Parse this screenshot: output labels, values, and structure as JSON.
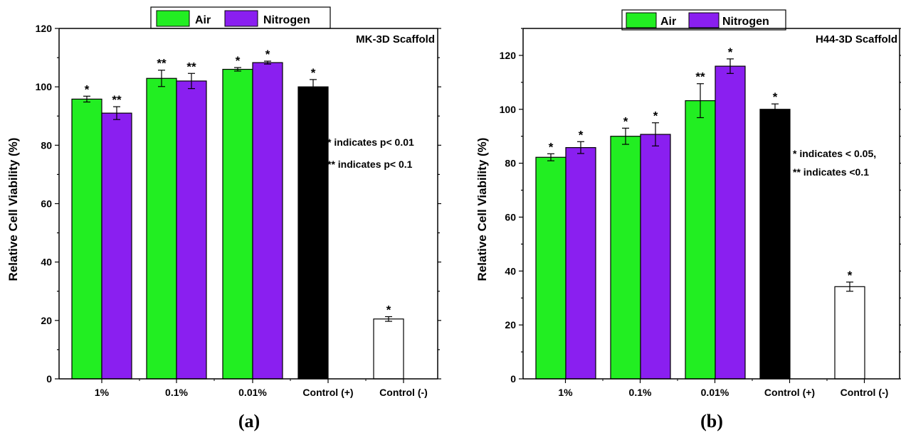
{
  "legend": {
    "air": "Air",
    "nitrogen": "Nitrogen"
  },
  "colors": {
    "air": "#22ee22",
    "nitrogen": "#8a1ff0",
    "control_pos": "#000000",
    "control_neg": "#ffffff"
  },
  "chart_data": [
    {
      "type": "bar",
      "panel_label": "(a)",
      "title": "MK-3D Scaffold",
      "xlabel": "",
      "ylabel": "Relative Cell Viability (%)",
      "ylim": [
        0,
        120
      ],
      "yticks": [
        0,
        20,
        40,
        60,
        80,
        100,
        120
      ],
      "categories": [
        "1%",
        "0.1%",
        "0.01%",
        "Control (+)",
        "Control (-)"
      ],
      "series": [
        {
          "name": "Air",
          "values": [
            95.8,
            102.9,
            106.0,
            null,
            null
          ],
          "errors": [
            1.0,
            2.8,
            0.6,
            null,
            null
          ],
          "sig": [
            "*",
            "**",
            "*",
            null,
            null
          ]
        },
        {
          "name": "Nitrogen",
          "values": [
            91.0,
            102.0,
            108.3,
            null,
            null
          ],
          "errors": [
            2.2,
            2.6,
            0.5,
            null,
            null
          ],
          "sig": [
            "**",
            "**",
            "*",
            null,
            null
          ]
        },
        {
          "name": "Control (+)",
          "values": [
            null,
            null,
            null,
            100.0,
            null
          ],
          "errors": [
            null,
            null,
            null,
            2.5,
            null
          ],
          "sig": [
            null,
            null,
            null,
            "*",
            null
          ]
        },
        {
          "name": "Control (-)",
          "values": [
            null,
            null,
            null,
            null,
            20.5
          ],
          "errors": [
            null,
            null,
            null,
            null,
            0.8
          ],
          "sig": [
            null,
            null,
            null,
            null,
            "*"
          ]
        }
      ],
      "annotations": [
        "* indicates p< 0.01",
        "** indicates p< 0.1"
      ],
      "legend_position": "top-center",
      "grid": false
    },
    {
      "type": "bar",
      "panel_label": "(b)",
      "title": "H44-3D Scaffold",
      "xlabel": "",
      "ylabel": "Relative Cell Viability (%)",
      "ylim": [
        0,
        130
      ],
      "yticks": [
        0,
        20,
        40,
        60,
        80,
        100,
        120
      ],
      "categories": [
        "1%",
        "0.1%",
        "0.01%",
        "Control (+)",
        "Control (-)"
      ],
      "series": [
        {
          "name": "Air",
          "values": [
            82.2,
            90.0,
            103.2,
            null,
            null
          ],
          "errors": [
            1.3,
            3.0,
            6.3,
            null,
            null
          ],
          "sig": [
            "*",
            "*",
            "**",
            null,
            null
          ]
        },
        {
          "name": "Nitrogen",
          "values": [
            85.8,
            90.7,
            116.0,
            null,
            null
          ],
          "errors": [
            2.2,
            4.3,
            2.7,
            null,
            null
          ],
          "sig": [
            "*",
            "*",
            "*",
            null,
            null
          ]
        },
        {
          "name": "Control (+)",
          "values": [
            null,
            null,
            null,
            100.0,
            null
          ],
          "errors": [
            null,
            null,
            null,
            2.0,
            null
          ],
          "sig": [
            null,
            null,
            null,
            "*",
            null
          ]
        },
        {
          "name": "Control (-)",
          "values": [
            null,
            null,
            null,
            null,
            34.2
          ],
          "errors": [
            null,
            null,
            null,
            null,
            1.7
          ],
          "sig": [
            null,
            null,
            null,
            null,
            "*"
          ]
        }
      ],
      "annotations": [
        "* indicates < 0.05,",
        "** indicates <0.1"
      ],
      "legend_position": "top-center",
      "grid": false
    }
  ]
}
